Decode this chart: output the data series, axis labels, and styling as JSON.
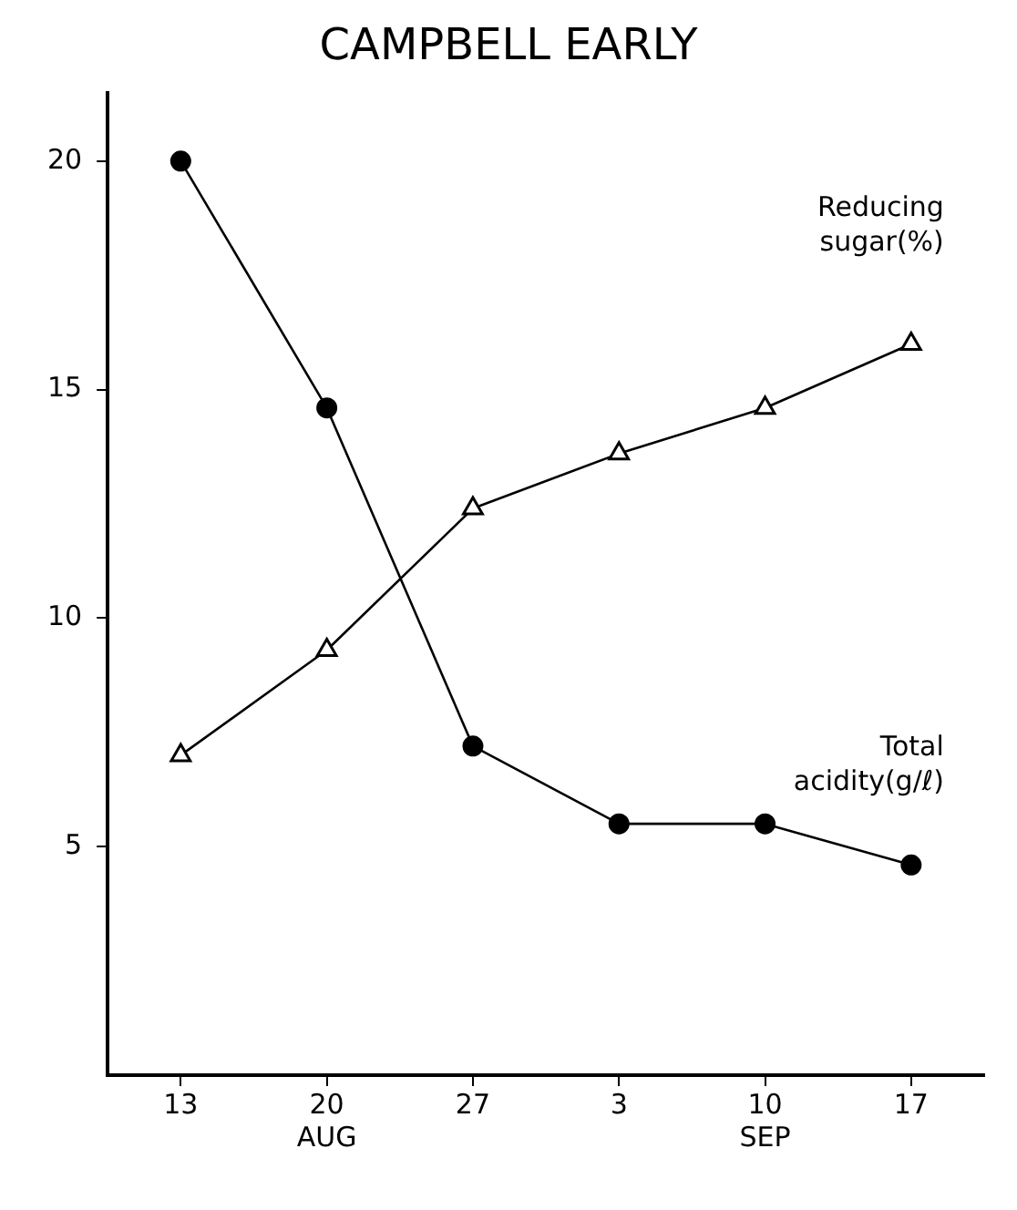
{
  "chart_data": {
    "type": "line",
    "title": "CAMPBELL EARLY",
    "categories": [
      "13",
      "20\nAUG",
      "27",
      "3",
      "10\nSEP",
      "17"
    ],
    "series": [
      {
        "name": "Reducing sugar(%)",
        "color": "#000000",
        "marker": "triangle",
        "values": [
          7.0,
          9.3,
          12.4,
          13.6,
          14.6,
          16.0
        ]
      },
      {
        "name": "Total acidity(g/ℓ)",
        "color": "#000000",
        "marker": "circle",
        "values": [
          20.0,
          14.6,
          7.2,
          5.5,
          5.5,
          4.6
        ]
      }
    ],
    "ylim": [
      0,
      21.5
    ],
    "yticks": [
      5,
      10,
      15,
      20
    ],
    "grid": false,
    "legend": false,
    "line_style": "solid"
  }
}
